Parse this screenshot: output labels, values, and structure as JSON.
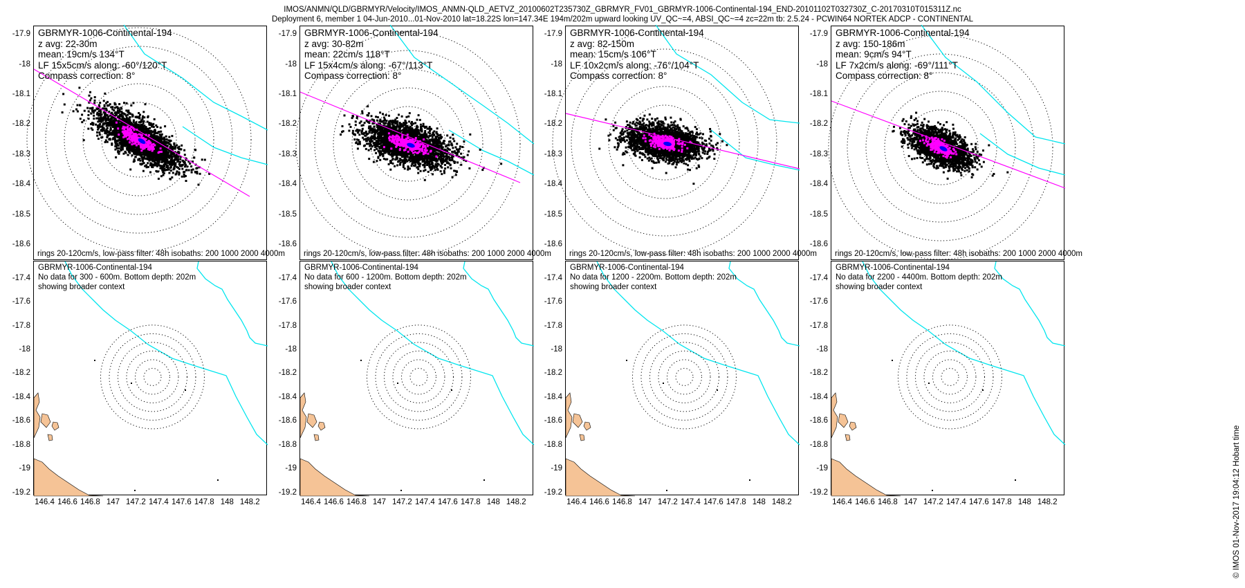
{
  "header": {
    "line1": "IMOS/ANMN/QLD/GBRMYR/Velocity/IMOS_ANMN-QLD_AETVZ_20100602T235730Z_GBRMYR_FV01_GBRMYR-1006-Continental-194_END-20101102T032730Z_C-20170310T015311Z.nc",
    "line2": "Deployment 6, member 1 04-Jun-2010...01-Nov-2010 lat=18.22S lon=147.34E 194m/202m upward looking UV_QC~=4, ABSI_QC~=4 zc=22m tb: 2.5.24 - PCWIN64 NORTEK ADCP - CONTINENTAL"
  },
  "stamp": "© IMOS 01-Nov-2017 19:04:12 Hobart time",
  "colors": {
    "scatter": "#000000",
    "lowpass": "#ff00ff",
    "mean": "#0000ff",
    "isobath": "#00e5ee",
    "land": "#f5c396",
    "axis_line": "#ff00ff"
  },
  "top_y_ticks": [
    "-17.9",
    "-18",
    "-18.1",
    "-18.2",
    "-18.3",
    "-18.4",
    "-18.5",
    "-18.6"
  ],
  "bottom_y_ticks": [
    "-17.4",
    "-17.6",
    "-17.8",
    "-18",
    "-18.2",
    "-18.4",
    "-18.6",
    "-18.8",
    "-19",
    "-19.2"
  ],
  "x_ticks": [
    "146.4",
    "146.6",
    "146.8",
    "147",
    "147.2",
    "147.4",
    "147.6",
    "147.8",
    "148",
    "148.2"
  ],
  "top_footer": "rings 20-120cm/s, low-pass filter: 48h isobaths: 200 1000 2000 4000m",
  "top_panels": [
    {
      "title": "GBRMYR-1006-Continental-194",
      "zavg": "z avg: 22-30m",
      "mean": "mean: 19cm/s 134°T",
      "lf": "LF 15x5cm/s along: -60°/120°T",
      "compass": "Compass correction: 8°"
    },
    {
      "title": "GBRMYR-1006-Continental-194",
      "zavg": "z avg: 30-82m",
      "mean": "mean: 22cm/s 118°T",
      "lf": "LF 15x4cm/s along: -67°/113°T",
      "compass": "Compass correction: 8°"
    },
    {
      "title": "GBRMYR-1006-Continental-194",
      "zavg": "z avg: 82-150m",
      "mean": "mean: 15cm/s 106°T",
      "lf": "LF 10x2cm/s along: -76°/104°T",
      "compass": "Compass correction: 8°"
    },
    {
      "title": "GBRMYR-1006-Continental-194",
      "zavg": "z avg: 150-186m",
      "mean": "mean: 9cm/s 94°T",
      "lf": "LF 7x2cm/s along: -69°/111°T",
      "compass": "Compass correction: 8°"
    }
  ],
  "bottom_panels": [
    {
      "title": "GBRMYR-1006-Continental-194",
      "nodata": "No data for 300 - 600m. Bottom depth: 202m",
      "context": "showing broader context"
    },
    {
      "title": "GBRMYR-1006-Continental-194",
      "nodata": "No data for 600 - 1200m. Bottom depth: 202m",
      "context": "showing broader context"
    },
    {
      "title": "GBRMYR-1006-Continental-194",
      "nodata": "No data for 1200 - 2200m. Bottom depth: 202m",
      "context": "showing broader context"
    },
    {
      "title": "GBRMYR-1006-Continental-194",
      "nodata": "No data for 2200 - 4400m. Bottom depth: 202m",
      "context": "showing broader context"
    }
  ],
  "chart_data": [
    {
      "type": "scatter",
      "panel": "top-1",
      "center": [
        147.34,
        -18.22
      ],
      "ring_speeds_cm_s": [
        20,
        40,
        60,
        80,
        100,
        120
      ],
      "ylim": [
        -18.65,
        -17.87
      ],
      "mean_speed_cm_s": 19,
      "mean_dir_degT": 134,
      "lf_major_cm_s": 15,
      "lf_minor_cm_s": 5,
      "along_deg": [
        -60,
        120
      ]
    },
    {
      "type": "scatter",
      "panel": "top-2",
      "center": [
        147.34,
        -18.22
      ],
      "ring_speeds_cm_s": [
        20,
        40,
        60,
        80,
        100,
        120
      ],
      "ylim": [
        -18.65,
        -17.87
      ],
      "mean_speed_cm_s": 22,
      "mean_dir_degT": 118,
      "lf_major_cm_s": 15,
      "lf_minor_cm_s": 4,
      "along_deg": [
        -67,
        113
      ]
    },
    {
      "type": "scatter",
      "panel": "top-3",
      "center": [
        147.34,
        -18.22
      ],
      "ring_speeds_cm_s": [
        20,
        40,
        60,
        80,
        100,
        120
      ],
      "ylim": [
        -18.65,
        -17.87
      ],
      "mean_speed_cm_s": 15,
      "mean_dir_degT": 106,
      "lf_major_cm_s": 10,
      "lf_minor_cm_s": 2,
      "along_deg": [
        -76,
        104
      ]
    },
    {
      "type": "scatter",
      "panel": "top-4",
      "center": [
        147.34,
        -18.22
      ],
      "ring_speeds_cm_s": [
        20,
        40,
        60,
        80,
        100,
        120
      ],
      "ylim": [
        -18.65,
        -17.87
      ],
      "mean_speed_cm_s": 9,
      "mean_dir_degT": 94,
      "lf_major_cm_s": 7,
      "lf_minor_cm_s": 2,
      "along_deg": [
        -69,
        111
      ]
    },
    {
      "type": "scatter",
      "panel": "bottom-context",
      "center": [
        147.34,
        -18.22
      ],
      "xlim": [
        146.3,
        148.35
      ],
      "ylim": [
        -19.22,
        -17.25
      ]
    }
  ]
}
